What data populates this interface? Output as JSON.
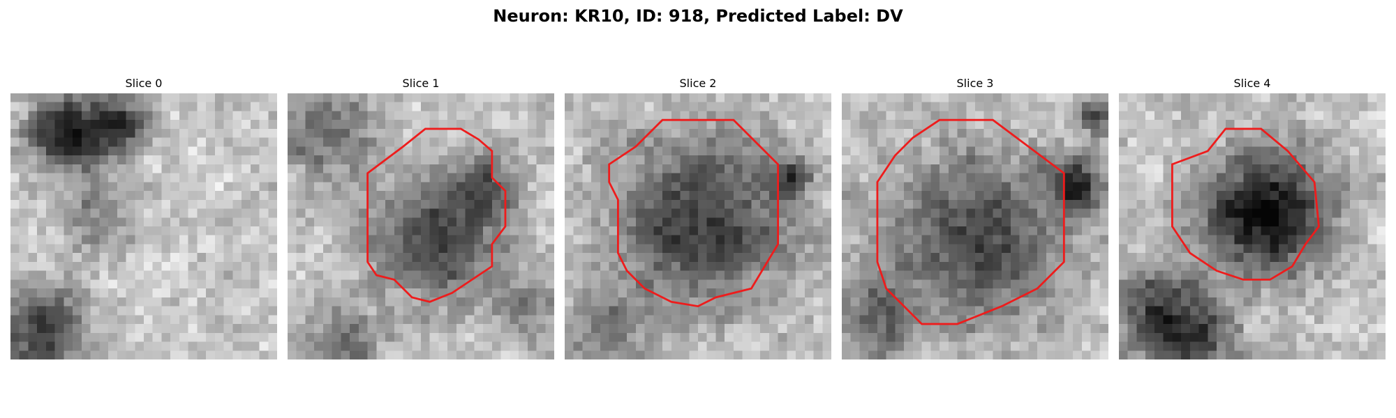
{
  "figure": {
    "title": "Neuron: KR10, ID: 918, Predicted Label: DV"
  },
  "panels": [
    {
      "title": "Slice 0",
      "has_contour": false,
      "seed": 11,
      "blobs": [
        [
          6,
          4,
          4,
          0.75
        ],
        [
          12,
          3,
          3,
          0.6
        ],
        [
          3,
          26,
          5,
          0.55
        ],
        [
          9,
          13,
          4,
          0.3
        ]
      ]
    },
    {
      "title": "Slice 1",
      "has_contour": true,
      "seed": 23,
      "blobs": [
        [
          16,
          16,
          7,
          0.55
        ],
        [
          22,
          10,
          3,
          0.45
        ],
        [
          26,
          24,
          4,
          0.3
        ],
        [
          4,
          4,
          5,
          0.4
        ],
        [
          6,
          28,
          4,
          0.35
        ]
      ]
    },
    {
      "title": "Slice 2",
      "has_contour": true,
      "seed": 37,
      "blobs": [
        [
          15,
          14,
          10,
          0.55
        ],
        [
          25,
          9,
          2,
          0.5
        ],
        [
          4,
          26,
          4,
          0.3
        ]
      ]
    },
    {
      "title": "Slice 3",
      "has_contour": true,
      "seed": 51,
      "blobs": [
        [
          15,
          16,
          10,
          0.5
        ],
        [
          26,
          10,
          3,
          0.6
        ],
        [
          28,
          2,
          2,
          0.5
        ],
        [
          3,
          25,
          5,
          0.35
        ]
      ]
    },
    {
      "title": "Slice 4",
      "has_contour": true,
      "seed": 67,
      "blobs": [
        [
          16,
          13,
          7,
          0.75
        ],
        [
          4,
          24,
          5,
          0.55
        ],
        [
          9,
          27,
          4,
          0.45
        ]
      ]
    }
  ],
  "colors": {
    "contour": "#ee1c1c",
    "background": "#ffffff"
  }
}
